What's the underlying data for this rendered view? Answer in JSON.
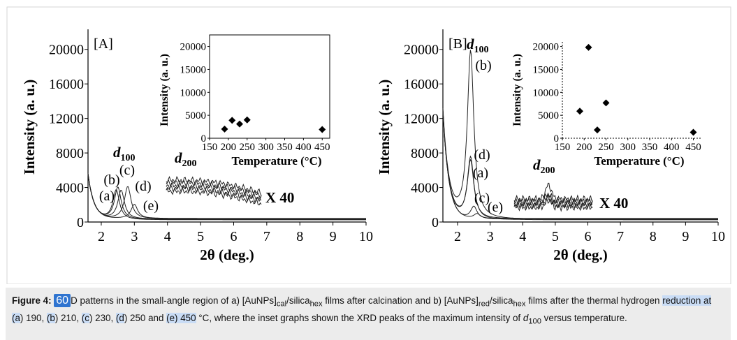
{
  "figure": {
    "badge": "60",
    "caption": {
      "label": "Figure 4:",
      "seg1": "D patterns in the small-angle region of a) [AuNPs]",
      "sub_cal": "cal",
      "seg2": "/silica",
      "sub_hex1": "hex",
      "seg3": " films after calcination and b) [AuNPs]",
      "sub_red": "red",
      "seg4": "/silica",
      "sub_hex2": "hex",
      "seg5": " films after the thermal hydrogen ",
      "hl1": "reduction at (a",
      "seg6": ") 190, ",
      "hl_b": "(b",
      "seg7": ") 210, ",
      "hl_c": "(c",
      "seg8": ") 230, ",
      "hl_d": "(d",
      "seg9": ") 250 and ",
      "hl_e": "(e) 450",
      "seg10": " °C, where the inset graphs shown the XRD peaks of the maximum intensity of ",
      "d_italic": "d",
      "sub_100": "100",
      "seg11": " versus temperature."
    }
  },
  "chart_data": [
    {
      "type": "line",
      "panel_label": "[A]",
      "xlabel": "2θ (deg.)",
      "ylabel": "Intensity (a. u.)",
      "xlim": [
        1.6,
        10
      ],
      "ylim": [
        0,
        22000
      ],
      "xticks": [
        2,
        3,
        4,
        5,
        6,
        7,
        8,
        9,
        10
      ],
      "yticks": [
        0,
        4000,
        8000,
        12000,
        16000,
        20000
      ],
      "peak_label": "d",
      "peak_sub": "100",
      "peak2_label": "d",
      "peak2_sub": "200",
      "scale_label": "X 40",
      "series": [
        {
          "name": "(a)",
          "peak_x": 2.45,
          "peak_y": 3700
        },
        {
          "name": "(b)",
          "peak_x": 2.5,
          "peak_y": 4000
        },
        {
          "name": "(c)",
          "peak_x": 2.6,
          "peak_y": 3600
        },
        {
          "name": "(d)",
          "peak_x": 2.8,
          "peak_y": 4000
        },
        {
          "name": "(e)",
          "peak_x": 3.0,
          "peak_y": 1900
        }
      ],
      "inset": {
        "type": "scatter",
        "xlabel": "Temperature (°C)",
        "ylabel": "Intensity (a. u.)",
        "xlim": [
          150,
          470
        ],
        "ylim": [
          0,
          21000
        ],
        "xticks": [
          150,
          200,
          250,
          300,
          350,
          400,
          450
        ],
        "yticks": [
          0,
          5000,
          10000,
          15000,
          20000
        ],
        "x": [
          190,
          210,
          230,
          250,
          450
        ],
        "y": [
          2000,
          3900,
          3100,
          4000,
          1900
        ]
      }
    },
    {
      "type": "line",
      "panel_label": "[B]",
      "xlabel": "2θ (deg.)",
      "ylabel": "Intensity (a. u.)",
      "xlim": [
        1.55,
        10
      ],
      "ylim": [
        0,
        22000
      ],
      "xticks": [
        2,
        3,
        4,
        5,
        6,
        7,
        8,
        9,
        10
      ],
      "yticks": [
        0,
        4000,
        8000,
        12000,
        16000,
        20000
      ],
      "peak_label": "d",
      "peak_sub": "100",
      "peak2_label": "d",
      "peak2_sub": "200",
      "scale_label": "X 40",
      "series": [
        {
          "name": "(a)",
          "peak_x": 2.4,
          "peak_y": 7500
        },
        {
          "name": "(b)",
          "peak_x": 2.4,
          "peak_y": 19800
        },
        {
          "name": "(c)",
          "peak_x": 2.5,
          "peak_y": 1700
        },
        {
          "name": "(d)",
          "peak_x": 2.4,
          "peak_y": 7000
        },
        {
          "name": "(e)",
          "peak_x": 2.6,
          "peak_y": 800
        }
      ],
      "inset": {
        "type": "scatter",
        "xlabel": "Temperature (°C)",
        "ylabel": "Intensity (a. u.)",
        "xlim": [
          150,
          470
        ],
        "ylim": [
          0,
          21000
        ],
        "xticks": [
          150,
          200,
          250,
          300,
          350,
          400,
          450
        ],
        "yticks": [
          0,
          5000,
          10000,
          15000,
          20000
        ],
        "x": [
          190,
          210,
          230,
          250,
          450
        ],
        "y": [
          5900,
          19800,
          1800,
          7700,
          1300
        ]
      }
    }
  ]
}
